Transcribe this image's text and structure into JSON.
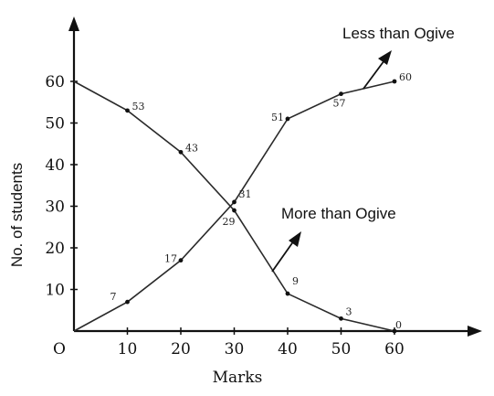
{
  "chart_data": {
    "type": "line",
    "xlabel": "Marks",
    "ylabel": "No. of students",
    "origin_label": "O",
    "x_ticks": [
      10,
      20,
      30,
      40,
      50,
      60
    ],
    "y_ticks": [
      10,
      20,
      30,
      40,
      50,
      60
    ],
    "xlim": [
      0,
      70
    ],
    "ylim": [
      0,
      70
    ],
    "grid": false,
    "series": [
      {
        "name": "Less than Ogive",
        "points": [
          {
            "x": 0,
            "y": 0,
            "label": ""
          },
          {
            "x": 10,
            "y": 7,
            "label": "7"
          },
          {
            "x": 20,
            "y": 17,
            "label": "17"
          },
          {
            "x": 30,
            "y": 31,
            "label": "31"
          },
          {
            "x": 40,
            "y": 51,
            "label": "51"
          },
          {
            "x": 50,
            "y": 57,
            "label": "57"
          },
          {
            "x": 60,
            "y": 60,
            "label": "60"
          }
        ]
      },
      {
        "name": "More than Ogive",
        "points": [
          {
            "x": 0,
            "y": 60,
            "label": ""
          },
          {
            "x": 10,
            "y": 53,
            "label": "53"
          },
          {
            "x": 20,
            "y": 43,
            "label": "43"
          },
          {
            "x": 30,
            "y": 29,
            "label": "29"
          },
          {
            "x": 40,
            "y": 9,
            "label": "9"
          },
          {
            "x": 50,
            "y": 3,
            "label": "3"
          },
          {
            "x": 60,
            "y": 0,
            "label": "0"
          }
        ]
      }
    ],
    "colors": {
      "axis": "#111111",
      "line": "#2a2a2a",
      "point": "#111111"
    }
  }
}
